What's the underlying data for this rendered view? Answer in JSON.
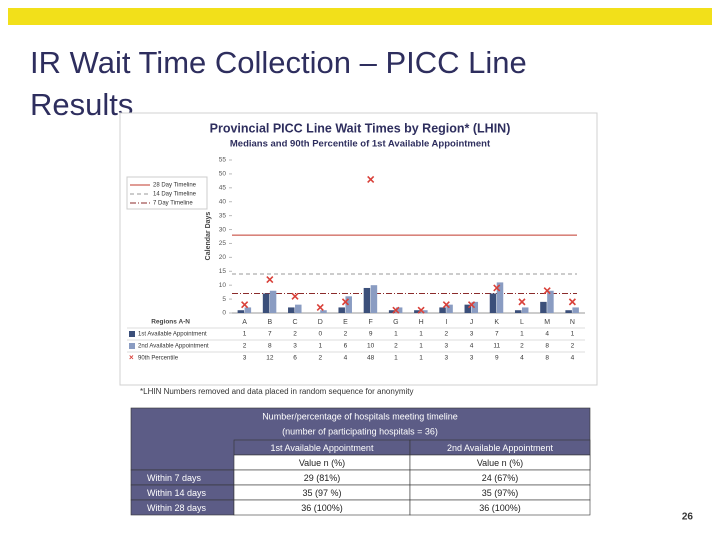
{
  "slide": {
    "title": "IR Wait Time Collection – PICC Line Results",
    "page_number": "26"
  },
  "chart_data": {
    "type": "bar",
    "title": "Provincial PICC Line Wait Times by Region* (LHIN)",
    "subtitle": "Medians and 90th Percentile of 1st Available Appointment",
    "y_label": "Calendar Days",
    "x_label": "Regions A-N",
    "footnote": "*LHIN Numbers removed and data placed in random sequence for anonymity",
    "categories": [
      "A",
      "B",
      "C",
      "D",
      "E",
      "F",
      "G",
      "H",
      "I",
      "J",
      "K",
      "L",
      "M",
      "N"
    ],
    "series": [
      {
        "name": "1st Available Appointment",
        "type": "bar",
        "color": "#3b4f7a",
        "values": [
          1,
          7,
          2,
          0,
          2,
          9,
          1,
          1,
          2,
          3,
          7,
          1,
          4,
          1
        ]
      },
      {
        "name": "2nd Available Appointment",
        "type": "bar",
        "color": "#8a9cc2",
        "values": [
          2,
          8,
          3,
          1,
          6,
          10,
          2,
          1,
          3,
          4,
          11,
          2,
          8,
          2
        ]
      },
      {
        "name": "90th Percentile",
        "type": "scatter",
        "color": "#d9413a",
        "values": [
          3,
          12,
          6,
          2,
          4,
          48,
          1,
          1,
          3,
          3,
          9,
          4,
          8,
          4
        ]
      }
    ],
    "reference_lines": [
      {
        "name": "28 Day Timeline",
        "value": 28,
        "color": "#c0392b",
        "dash": "none"
      },
      {
        "name": "14 Day Timeline",
        "value": 14,
        "color": "#999999",
        "dash": "4 3"
      },
      {
        "name": "7 Day Timeline",
        "value": 7,
        "color": "#8b2b2b",
        "dash": "6 2 1 2"
      }
    ],
    "ylim": [
      0,
      55
    ],
    "yticks": [
      0,
      5,
      10,
      15,
      20,
      25,
      30,
      35,
      40,
      45,
      50,
      55
    ],
    "grid": false
  },
  "table": {
    "header": [
      "Number/percentage of hospitals meeting timeline",
      "(number of participating hospitals = 36)"
    ],
    "columns": [
      "1st Available Appointment",
      "2nd Available Appointment"
    ],
    "subheaders": [
      "Value n (%)",
      "Value n (%)"
    ],
    "rows": [
      [
        "Within 7 days",
        "29 (81%)",
        "24 (67%)"
      ],
      [
        "Within 14 days",
        "35 (97 %)",
        "35 (97%)"
      ],
      [
        "Within 28 days",
        "36 (100%)",
        "36 (100%)"
      ]
    ]
  }
}
